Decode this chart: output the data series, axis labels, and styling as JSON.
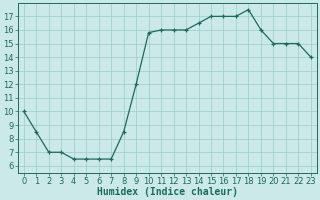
{
  "x": [
    0,
    1,
    2,
    3,
    4,
    5,
    6,
    7,
    8,
    9,
    10,
    11,
    12,
    13,
    14,
    15,
    16,
    17,
    18,
    19,
    20,
    21,
    22,
    23
  ],
  "y": [
    10,
    8.5,
    7,
    7,
    6.5,
    6.5,
    6.5,
    6.5,
    8.5,
    12,
    15.8,
    16,
    16,
    16,
    16.5,
    17,
    17,
    17,
    17.5,
    16,
    15,
    15,
    15,
    14
  ],
  "line_color": "#1a6b5a",
  "marker": "+",
  "marker_size": 3,
  "linewidth": 0.9,
  "bg_color": "#cce9e9",
  "grid_color": "#99cccc",
  "xlabel": "Humidex (Indice chaleur)",
  "xlabel_fontsize": 7,
  "tick_fontsize": 6,
  "xlim": [
    -0.5,
    23.5
  ],
  "ylim": [
    5.5,
    18
  ],
  "yticks": [
    6,
    7,
    8,
    9,
    10,
    11,
    12,
    13,
    14,
    15,
    16,
    17
  ],
  "xticks": [
    0,
    1,
    2,
    3,
    4,
    5,
    6,
    7,
    8,
    9,
    10,
    11,
    12,
    13,
    14,
    15,
    16,
    17,
    18,
    19,
    20,
    21,
    22,
    23
  ]
}
